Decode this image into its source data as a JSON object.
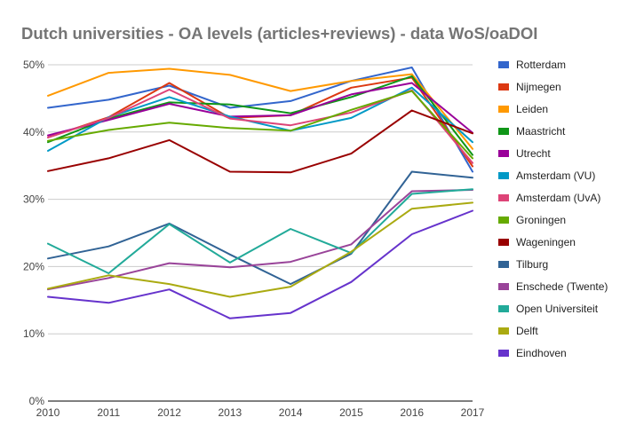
{
  "chart_data": {
    "type": "line",
    "title": "Dutch universities - OA levels (articles+reviews) - data WoS/oaDOI",
    "xlabel": "",
    "ylabel": "",
    "x": [
      "2010",
      "2011",
      "2012",
      "2013",
      "2014",
      "2015",
      "2016",
      "2017"
    ],
    "ylim": [
      0,
      50
    ],
    "yticks": [
      0,
      10,
      20,
      30,
      40,
      50
    ],
    "y_tick_labels": [
      "0%",
      "10%",
      "20%",
      "30%",
      "40%",
      "50%"
    ],
    "grid": true,
    "legend": "right",
    "series": [
      {
        "name": "Rotterdam",
        "color": "#3366cc",
        "values": [
          43.6,
          44.8,
          46.9,
          43.6,
          44.6,
          47.6,
          49.6,
          34.1
        ]
      },
      {
        "name": "Nijmegen",
        "color": "#dc3912",
        "values": [
          39.2,
          42.2,
          47.3,
          42.1,
          42.5,
          46.6,
          48.1,
          34.9
        ]
      },
      {
        "name": "Leiden",
        "color": "#ff9900",
        "values": [
          45.4,
          48.8,
          49.4,
          48.5,
          46.1,
          47.6,
          48.6,
          37.5
        ]
      },
      {
        "name": "Maastricht",
        "color": "#109618",
        "values": [
          38.5,
          42.0,
          44.4,
          44.1,
          42.8,
          45.2,
          48.3,
          36.6
        ]
      },
      {
        "name": "Utrecht",
        "color": "#990099",
        "values": [
          39.5,
          41.8,
          44.2,
          42.3,
          42.5,
          45.6,
          47.3,
          39.9
        ]
      },
      {
        "name": "Amsterdam (VU)",
        "color": "#0099c6",
        "values": [
          37.2,
          42.2,
          45.2,
          42.3,
          40.2,
          42.1,
          46.6,
          38.5
        ]
      },
      {
        "name": "Amsterdam (UvA)",
        "color": "#dd4477",
        "values": [
          39.2,
          42.1,
          46.3,
          42.0,
          41.0,
          42.9,
          46.2,
          35.4
        ]
      },
      {
        "name": "Groningen",
        "color": "#66aa00",
        "values": [
          38.7,
          40.3,
          41.4,
          40.6,
          40.2,
          43.3,
          46.1,
          36.1
        ]
      },
      {
        "name": "Wageningen",
        "color": "#990000",
        "values": [
          34.2,
          36.1,
          38.8,
          34.1,
          34.0,
          36.8,
          43.2,
          39.8
        ]
      },
      {
        "name": "Tilburg",
        "color": "#316395",
        "values": [
          21.2,
          23.0,
          26.4,
          21.8,
          17.4,
          21.9,
          34.1,
          33.2
        ]
      },
      {
        "name": "Enschede (Twente)",
        "color": "#994499",
        "values": [
          16.6,
          18.3,
          20.5,
          19.9,
          20.7,
          23.3,
          31.2,
          31.4
        ]
      },
      {
        "name": "Open Universiteit",
        "color": "#22aa99",
        "values": [
          23.4,
          19.0,
          26.3,
          20.6,
          25.6,
          22.0,
          30.8,
          31.5
        ]
      },
      {
        "name": "Delft",
        "color": "#aaaa11",
        "values": [
          16.7,
          18.7,
          17.4,
          15.5,
          17.0,
          22.2,
          28.6,
          29.5
        ]
      },
      {
        "name": "Eindhoven",
        "color": "#6633cc",
        "values": [
          15.5,
          14.6,
          16.6,
          12.3,
          13.1,
          17.7,
          24.8,
          28.3
        ]
      }
    ]
  }
}
